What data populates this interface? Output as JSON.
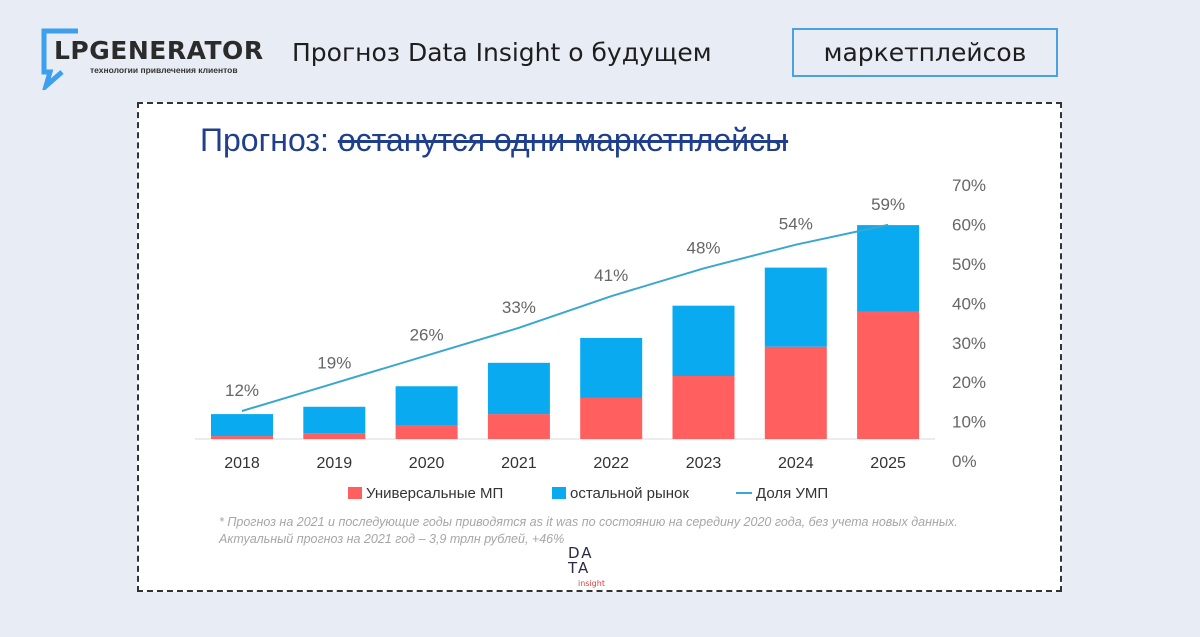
{
  "header": {
    "logo_name": "LPGENERATOR",
    "logo_tagline": "технологии привлечения клиентов",
    "title": "Прогноз Data Insight о будущем",
    "highlight": "маркетплейсов"
  },
  "slide": {
    "title_prefix": "Прогноз:",
    "title_struck": "останутся одни маркетплейсы",
    "footnote": "* Прогноз на 2021 и последующие годы приводятся as it was по состоянию на середину 2020 года, без учета новых данных. Актуальный прогноз на 2021 год – 3,9 трлн рублей, +46%",
    "source_logo": {
      "line1": "DA",
      "line2": "TA",
      "line3": "insight"
    }
  },
  "chart_data": {
    "type": "bar",
    "stacked": true,
    "categories": [
      "2018",
      "2019",
      "2020",
      "2021",
      "2022",
      "2023",
      "2024",
      "2025"
    ],
    "series": [
      {
        "name": "Универсальные МП",
        "type": "bar",
        "color": "#ff5f5f",
        "values": [
          0.1,
          0.2,
          0.45,
          0.85,
          1.4,
          2.15,
          3.15,
          4.35
        ]
      },
      {
        "name": "остальной рынок",
        "type": "bar",
        "color": "#0aaaf0",
        "values": [
          0.75,
          0.9,
          1.35,
          1.75,
          2.05,
          2.4,
          2.7,
          2.95
        ]
      },
      {
        "name": "Доля УМП",
        "type": "line",
        "axis": "right",
        "color": "#3aa7d0",
        "values": [
          12,
          19,
          26,
          33,
          41,
          48,
          54,
          59
        ],
        "labels": [
          "12%",
          "19%",
          "26%",
          "33%",
          "41%",
          "48%",
          "54%",
          "59%"
        ]
      }
    ],
    "right_axis": {
      "ticks": [
        "0%",
        "10%",
        "20%",
        "30%",
        "40%",
        "50%",
        "60%",
        "70%"
      ],
      "range": [
        0,
        70
      ]
    },
    "legend": "bottom"
  }
}
